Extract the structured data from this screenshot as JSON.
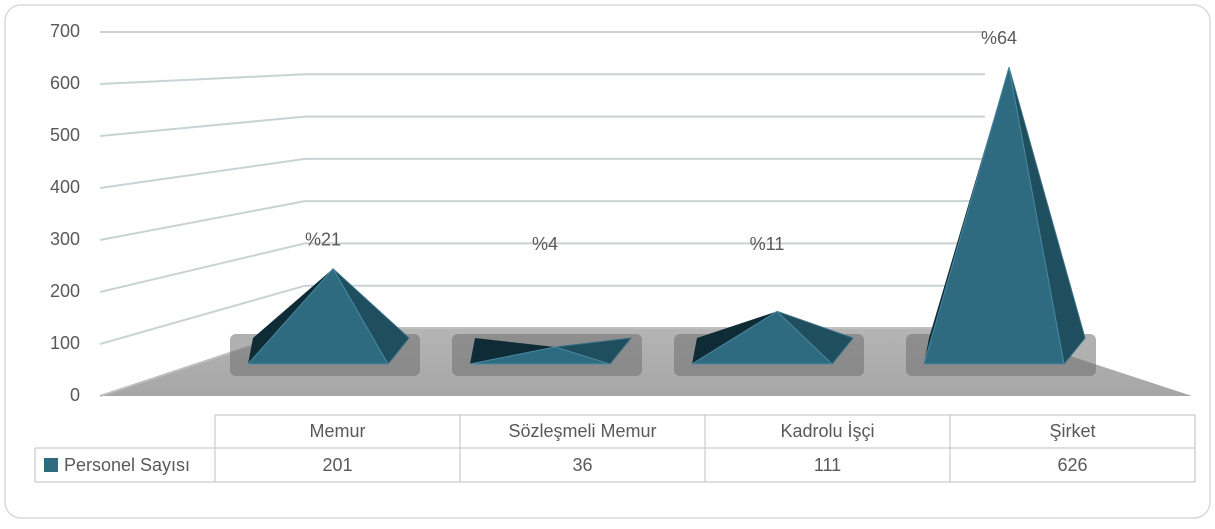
{
  "chart_data": {
    "type": "pyramid3d",
    "categories": [
      "Memur",
      "Sözleşmeli Memur",
      "Kadrolu İşçi",
      "Şirket"
    ],
    "series": [
      {
        "name": "Personel Sayısı",
        "color": "#2e6b80",
        "values": [
          201,
          36,
          111,
          626
        ]
      }
    ],
    "percent_labels": [
      "%21",
      "%4",
      "%11",
      "%64"
    ],
    "ylim": [
      0,
      700
    ],
    "yticks": [
      0,
      100,
      200,
      300,
      400,
      500,
      600,
      700
    ],
    "grid": true,
    "data_table": true
  }
}
